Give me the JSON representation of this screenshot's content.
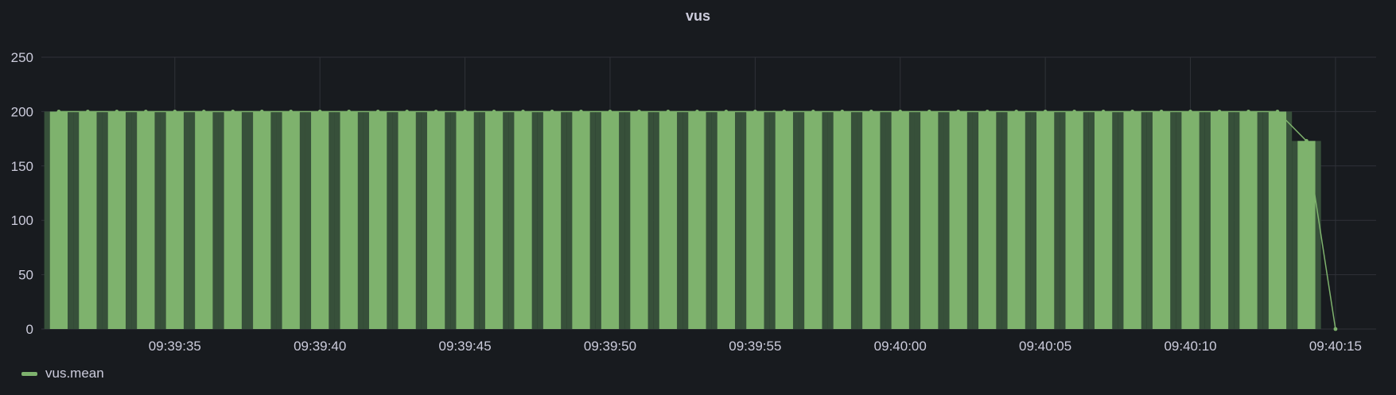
{
  "panel": {
    "title": "vus"
  },
  "legend": {
    "series_label": "vus.mean"
  },
  "colors": {
    "series": "#7eb26d",
    "series_dark": "#37503a",
    "grid": "#2f3238",
    "background": "#181b1f"
  },
  "chart_data": {
    "type": "bar",
    "title": "vus",
    "xlabel": "",
    "ylabel": "",
    "ylim": [
      0,
      250
    ],
    "y_ticks": [
      0,
      50,
      100,
      150,
      200,
      250
    ],
    "x_time_range": [
      "09:39:30.4",
      "09:40:16.4"
    ],
    "x_ticks": [
      "09:39:35",
      "09:39:40",
      "09:39:45",
      "09:39:50",
      "09:39:55",
      "09:40:00",
      "09:40:05",
      "09:40:10",
      "09:40:15"
    ],
    "grid": true,
    "legend_position": "bottom-left",
    "series": [
      {
        "name": "vus.mean",
        "x": [
          "09:39:31",
          "09:39:32",
          "09:39:33",
          "09:39:34",
          "09:39:35",
          "09:39:36",
          "09:39:37",
          "09:39:38",
          "09:39:39",
          "09:39:40",
          "09:39:41",
          "09:39:42",
          "09:39:43",
          "09:39:44",
          "09:39:45",
          "09:39:46",
          "09:39:47",
          "09:39:48",
          "09:39:49",
          "09:39:50",
          "09:39:51",
          "09:39:52",
          "09:39:53",
          "09:39:54",
          "09:39:55",
          "09:39:56",
          "09:39:57",
          "09:39:58",
          "09:39:59",
          "09:40:00",
          "09:40:01",
          "09:40:02",
          "09:40:03",
          "09:40:04",
          "09:40:05",
          "09:40:06",
          "09:40:07",
          "09:40:08",
          "09:40:09",
          "09:40:10",
          "09:40:11",
          "09:40:12",
          "09:40:13",
          "09:40:14",
          "09:40:15"
        ],
        "values": [
          200,
          200,
          200,
          200,
          200,
          200,
          200,
          200,
          200,
          200,
          200,
          200,
          200,
          200,
          200,
          200,
          200,
          200,
          200,
          200,
          200,
          200,
          200,
          200,
          200,
          200,
          200,
          200,
          200,
          200,
          200,
          200,
          200,
          200,
          200,
          200,
          200,
          200,
          200,
          200,
          200,
          200,
          200,
          173,
          0
        ]
      }
    ]
  }
}
